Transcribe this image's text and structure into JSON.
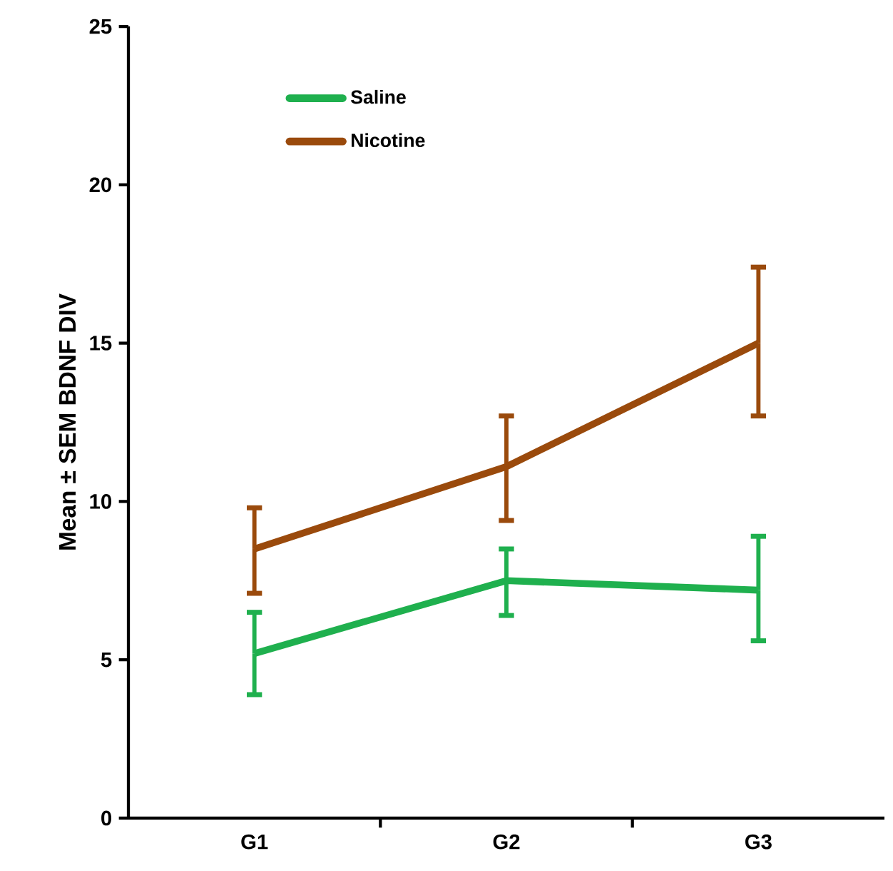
{
  "chart_data": {
    "type": "line",
    "ylabel": "Mean ± SEM BDNF DIV",
    "categories": [
      "G1",
      "G2",
      "G3"
    ],
    "series": [
      {
        "name": "Saline",
        "color": "#1fb04e",
        "values": [
          5.2,
          7.5,
          7.2
        ],
        "errors": [
          [
            3.9,
            6.5
          ],
          [
            6.4,
            8.5
          ],
          [
            5.6,
            8.9
          ]
        ]
      },
      {
        "name": "Nicotine",
        "color": "#9a4a0c",
        "values": [
          8.5,
          11.1,
          15.0
        ],
        "errors": [
          [
            7.1,
            9.8
          ],
          [
            9.4,
            12.7
          ],
          [
            12.7,
            17.4
          ]
        ]
      }
    ],
    "ylim": [
      0,
      25
    ],
    "yticks": [
      0,
      5,
      10,
      15,
      20,
      25
    ],
    "legend": "top left",
    "grid": false
  }
}
